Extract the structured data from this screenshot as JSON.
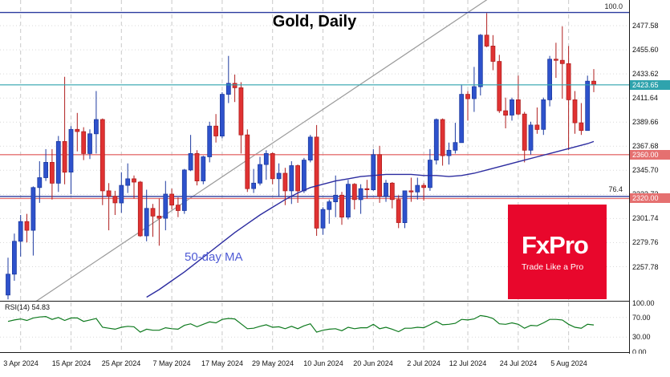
{
  "chart_data": {
    "type": "candlestick",
    "title": "Gold, Daily",
    "columns": [
      "date",
      "open",
      "high",
      "low",
      "close"
    ],
    "scale": {
      "price_range": [
        2226,
        2501
      ],
      "grid": true
    },
    "y_ticks": [
      "2477.58",
      "2455.60",
      "2433.62",
      "2411.64",
      "2389.66",
      "2367.68",
      "2345.70",
      "2323.72",
      "2301.74",
      "2279.76",
      "2257.78"
    ],
    "x_ticks": [
      {
        "i": 2,
        "label": "3 Apr 2024"
      },
      {
        "i": 10,
        "label": "15 Apr 2024"
      },
      {
        "i": 18,
        "label": "25 Apr 2024"
      },
      {
        "i": 26,
        "label": "7 May 2024"
      },
      {
        "i": 34,
        "label": "17 May 2024"
      },
      {
        "i": 42,
        "label": "29 May 2024"
      },
      {
        "i": 50,
        "label": "10 Jun 2024"
      },
      {
        "i": 58,
        "label": "20 Jun 2024"
      },
      {
        "i": 66,
        "label": "2 Jul 2024"
      },
      {
        "i": 73,
        "label": "12 Jul 2024"
      },
      {
        "i": 81,
        "label": "24 Jul 2024"
      },
      {
        "i": 89,
        "label": "5 Aug 2024"
      }
    ],
    "candles": [
      [
        "1 Apr",
        2232,
        2266,
        2228,
        2251
      ],
      [
        "2 Apr",
        2251,
        2288,
        2245,
        2281
      ],
      [
        "3 Apr",
        2281,
        2305,
        2267,
        2299
      ],
      [
        "4 Apr",
        2299,
        2306,
        2280,
        2291
      ],
      [
        "5 Apr",
        2291,
        2331,
        2268,
        2330
      ],
      [
        "8 Apr",
        2330,
        2354,
        2316,
        2339
      ],
      [
        "9 Apr",
        2339,
        2365,
        2336,
        2353
      ],
      [
        "10 Apr",
        2353,
        2365,
        2319,
        2334
      ],
      [
        "11 Apr",
        2334,
        2377,
        2326,
        2372
      ],
      [
        "12 Apr",
        2372,
        2431,
        2333,
        2344
      ],
      [
        "15 Apr",
        2344,
        2386,
        2324,
        2383
      ],
      [
        "16 Apr",
        2383,
        2398,
        2363,
        2381
      ],
      [
        "17 Apr",
        2381,
        2385,
        2355,
        2361
      ],
      [
        "18 Apr",
        2361,
        2383,
        2356,
        2379
      ],
      [
        "19 Apr",
        2379,
        2418,
        2361,
        2392
      ],
      [
        "22 Apr",
        2392,
        2393,
        2314,
        2327
      ],
      [
        "23 Apr",
        2327,
        2334,
        2291,
        2322
      ],
      [
        "24 Apr",
        2322,
        2327,
        2305,
        2316
      ],
      [
        "25 Apr",
        2316,
        2344,
        2307,
        2332
      ],
      [
        "26 Apr",
        2332,
        2352,
        2325,
        2338
      ],
      [
        "29 Apr",
        2338,
        2341,
        2320,
        2335
      ],
      [
        "30 Apr",
        2335,
        2336,
        2285,
        2286
      ],
      [
        "1 May",
        2286,
        2328,
        2281,
        2311
      ],
      [
        "2 May",
        2311,
        2315,
        2285,
        2304
      ],
      [
        "3 May",
        2304,
        2320,
        2277,
        2302
      ],
      [
        "6 May",
        2302,
        2336,
        2291,
        2324
      ],
      [
        "7 May",
        2324,
        2329,
        2310,
        2314
      ],
      [
        "8 May",
        2314,
        2321,
        2303,
        2309
      ],
      [
        "9 May",
        2309,
        2347,
        2306,
        2346
      ],
      [
        "10 May",
        2346,
        2378,
        2345,
        2361
      ],
      [
        "13 May",
        2361,
        2364,
        2332,
        2336
      ],
      [
        "14 May",
        2336,
        2359,
        2333,
        2358
      ],
      [
        "15 May",
        2358,
        2390,
        2353,
        2386
      ],
      [
        "16 May",
        2386,
        2397,
        2371,
        2377
      ],
      [
        "17 May",
        2377,
        2417,
        2375,
        2415
      ],
      [
        "20 May",
        2415,
        2450,
        2407,
        2425
      ],
      [
        "21 May",
        2425,
        2433,
        2408,
        2421
      ],
      [
        "22 May",
        2421,
        2426,
        2361,
        2378
      ],
      [
        "23 May",
        2378,
        2383,
        2326,
        2329
      ],
      [
        "24 May",
        2329,
        2347,
        2325,
        2334
      ],
      [
        "27 May",
        2334,
        2358,
        2332,
        2351
      ],
      [
        "28 May",
        2351,
        2364,
        2337,
        2361
      ],
      [
        "29 May",
        2361,
        2362,
        2333,
        2338
      ],
      [
        "30 May",
        2338,
        2352,
        2322,
        2343
      ],
      [
        "31 May",
        2343,
        2348,
        2314,
        2327
      ],
      [
        "3 Jun",
        2327,
        2354,
        2315,
        2350
      ],
      [
        "4 Jun",
        2350,
        2351,
        2316,
        2327
      ],
      [
        "5 Jun",
        2327,
        2357,
        2325,
        2355
      ],
      [
        "6 Jun",
        2355,
        2378,
        2353,
        2376
      ],
      [
        "7 Jun",
        2376,
        2387,
        2286,
        2293
      ],
      [
        "10 Jun",
        2293,
        2312,
        2287,
        2310
      ],
      [
        "11 Jun",
        2310,
        2319,
        2297,
        2317
      ],
      [
        "12 Jun",
        2317,
        2341,
        2303,
        2323
      ],
      [
        "13 Jun",
        2323,
        2326,
        2296,
        2303
      ],
      [
        "14 Jun",
        2303,
        2337,
        2301,
        2333
      ],
      [
        "17 Jun",
        2333,
        2334,
        2310,
        2319
      ],
      [
        "18 Jun",
        2319,
        2333,
        2306,
        2329
      ],
      [
        "19 Jun",
        2329,
        2337,
        2320,
        2328
      ],
      [
        "20 Jun",
        2328,
        2365,
        2327,
        2360
      ],
      [
        "21 Jun",
        2360,
        2368,
        2316,
        2322
      ],
      [
        "24 Jun",
        2322,
        2337,
        2317,
        2334
      ],
      [
        "25 Jun",
        2334,
        2335,
        2311,
        2319
      ],
      [
        "26 Jun",
        2319,
        2323,
        2293,
        2298
      ],
      [
        "27 Jun",
        2298,
        2327,
        2293,
        2327
      ],
      [
        "28 Jun",
        2327,
        2339,
        2317,
        2326
      ],
      [
        "1 Jul",
        2326,
        2339,
        2319,
        2332
      ],
      [
        "2 Jul",
        2332,
        2334,
        2318,
        2330
      ],
      [
        "3 Jul",
        2330,
        2365,
        2327,
        2355
      ],
      [
        "5 Jul",
        2355,
        2393,
        2351,
        2392
      ],
      [
        "8 Jul",
        2392,
        2393,
        2350,
        2359
      ],
      [
        "9 Jul",
        2359,
        2371,
        2351,
        2364
      ],
      [
        "10 Jul",
        2364,
        2389,
        2361,
        2371
      ],
      [
        "11 Jul",
        2371,
        2424,
        2371,
        2415
      ],
      [
        "12 Jul",
        2415,
        2418,
        2391,
        2411
      ],
      [
        "15 Jul",
        2411,
        2440,
        2399,
        2422
      ],
      [
        "16 Jul",
        2422,
        2470,
        2414,
        2469
      ],
      [
        "17 Jul",
        2469,
        2489,
        2458,
        2459
      ],
      [
        "18 Jul",
        2459,
        2469,
        2437,
        2445
      ],
      [
        "19 Jul",
        2445,
        2451,
        2398,
        2400
      ],
      [
        "22 Jul",
        2400,
        2412,
        2384,
        2396
      ],
      [
        "23 Jul",
        2396,
        2412,
        2391,
        2410
      ],
      [
        "24 Jul",
        2410,
        2432,
        2396,
        2397
      ],
      [
        "25 Jul",
        2397,
        2399,
        2353,
        2364
      ],
      [
        "26 Jul",
        2364,
        2390,
        2360,
        2387
      ],
      [
        "29 Jul",
        2387,
        2403,
        2379,
        2383
      ],
      [
        "30 Jul",
        2383,
        2412,
        2378,
        2410
      ],
      [
        "31 Jul",
        2410,
        2450,
        2404,
        2447
      ],
      [
        "1 Aug",
        2447,
        2462,
        2430,
        2446
      ],
      [
        "2 Aug",
        2446,
        2477,
        2411,
        2443
      ],
      [
        "5 Aug",
        2443,
        2459,
        2364,
        2410
      ],
      [
        "6 Aug",
        2410,
        2418,
        2379,
        2389
      ],
      [
        "7 Aug",
        2389,
        2407,
        2378,
        2382
      ],
      [
        "8 Aug",
        2382,
        2432,
        2382,
        2427
      ],
      [
        "9 Aug",
        2427,
        2438,
        2417,
        2423.65
      ]
    ],
    "ma50": {
      "label": "50-day MA",
      "points": [
        [
          22,
          2230
        ],
        [
          24,
          2237
        ],
        [
          26,
          2245
        ],
        [
          28,
          2253
        ],
        [
          30,
          2262
        ],
        [
          32,
          2271
        ],
        [
          34,
          2280
        ],
        [
          36,
          2289
        ],
        [
          38,
          2297
        ],
        [
          40,
          2305
        ],
        [
          42,
          2312
        ],
        [
          44,
          2319
        ],
        [
          46,
          2325
        ],
        [
          48,
          2330
        ],
        [
          50,
          2333
        ],
        [
          52,
          2336
        ],
        [
          54,
          2338
        ],
        [
          56,
          2340
        ],
        [
          58,
          2341
        ],
        [
          60,
          2342
        ],
        [
          62,
          2342
        ],
        [
          64,
          2342
        ],
        [
          66,
          2341
        ],
        [
          68,
          2341
        ],
        [
          70,
          2340
        ],
        [
          72,
          2341
        ],
        [
          74,
          2343
        ],
        [
          76,
          2346
        ],
        [
          78,
          2349
        ],
        [
          80,
          2352
        ],
        [
          82,
          2355
        ],
        [
          84,
          2358
        ],
        [
          86,
          2361
        ],
        [
          88,
          2364
        ],
        [
          90,
          2367
        ],
        [
          92,
          2370
        ],
        [
          93,
          2372
        ]
      ]
    },
    "levels": {
      "current": {
        "label": "2423.65",
        "price": 2423.65
      },
      "support": [
        {
          "label": "2360.00",
          "price": 2360.0
        },
        {
          "label": "2320.00",
          "price": 2320.0
        }
      ],
      "fib": [
        {
          "label": "100.0",
          "price": 2489.6
        },
        {
          "label": "76.4",
          "price": 2321.9
        }
      ]
    },
    "trendline": {
      "from": {
        "i": 1,
        "p": 2213
      },
      "to": {
        "i": 77,
        "p": 2505
      }
    },
    "rsi": {
      "name": "RSI(14)",
      "value": "54.83",
      "axis_labels": [
        {
          "v": 100,
          "label": "100.00"
        },
        {
          "v": 70,
          "label": "70.00"
        },
        {
          "v": 30,
          "label": "30.00"
        },
        {
          "v": 0,
          "label": "0.00"
        }
      ],
      "guide_levels": [
        70,
        30
      ],
      "values": [
        62,
        65,
        67,
        64,
        69,
        71,
        72,
        66,
        70,
        64,
        69,
        69,
        62,
        65,
        68,
        50,
        48,
        46,
        50,
        52,
        51,
        40,
        46,
        44,
        44,
        49,
        47,
        46,
        54,
        57,
        51,
        56,
        61,
        59,
        66,
        68,
        67,
        57,
        47,
        48,
        52,
        55,
        50,
        51,
        47,
        52,
        47,
        53,
        57,
        40,
        44,
        46,
        47,
        43,
        50,
        47,
        49,
        49,
        56,
        47,
        50,
        46,
        41,
        48,
        48,
        50,
        49,
        55,
        62,
        55,
        56,
        58,
        66,
        65,
        67,
        74,
        72,
        68,
        57,
        56,
        59,
        56,
        48,
        54,
        53,
        59,
        66,
        66,
        65,
        56,
        50,
        48,
        56,
        54.83
      ]
    }
  },
  "branding": {
    "logo": "FxPro",
    "tagline": "Trade Like a Pro"
  },
  "colors": {
    "up": "#2e52cc",
    "up_border": "#1d3aa0",
    "down": "#e03232",
    "down_border": "#b01f1f",
    "ma": "#2c2ca0",
    "ma_label": "#4f5bd5",
    "rsi": "#0e7a1e",
    "level_red": "#e57070",
    "fib_blue": "#2a3a9e",
    "current": "#2fa3ad",
    "grid_v": "#c9c9c9",
    "grid_h": "#d9d9d9",
    "trend": "#9a9a9a",
    "logo_bg": "#e8072c"
  }
}
